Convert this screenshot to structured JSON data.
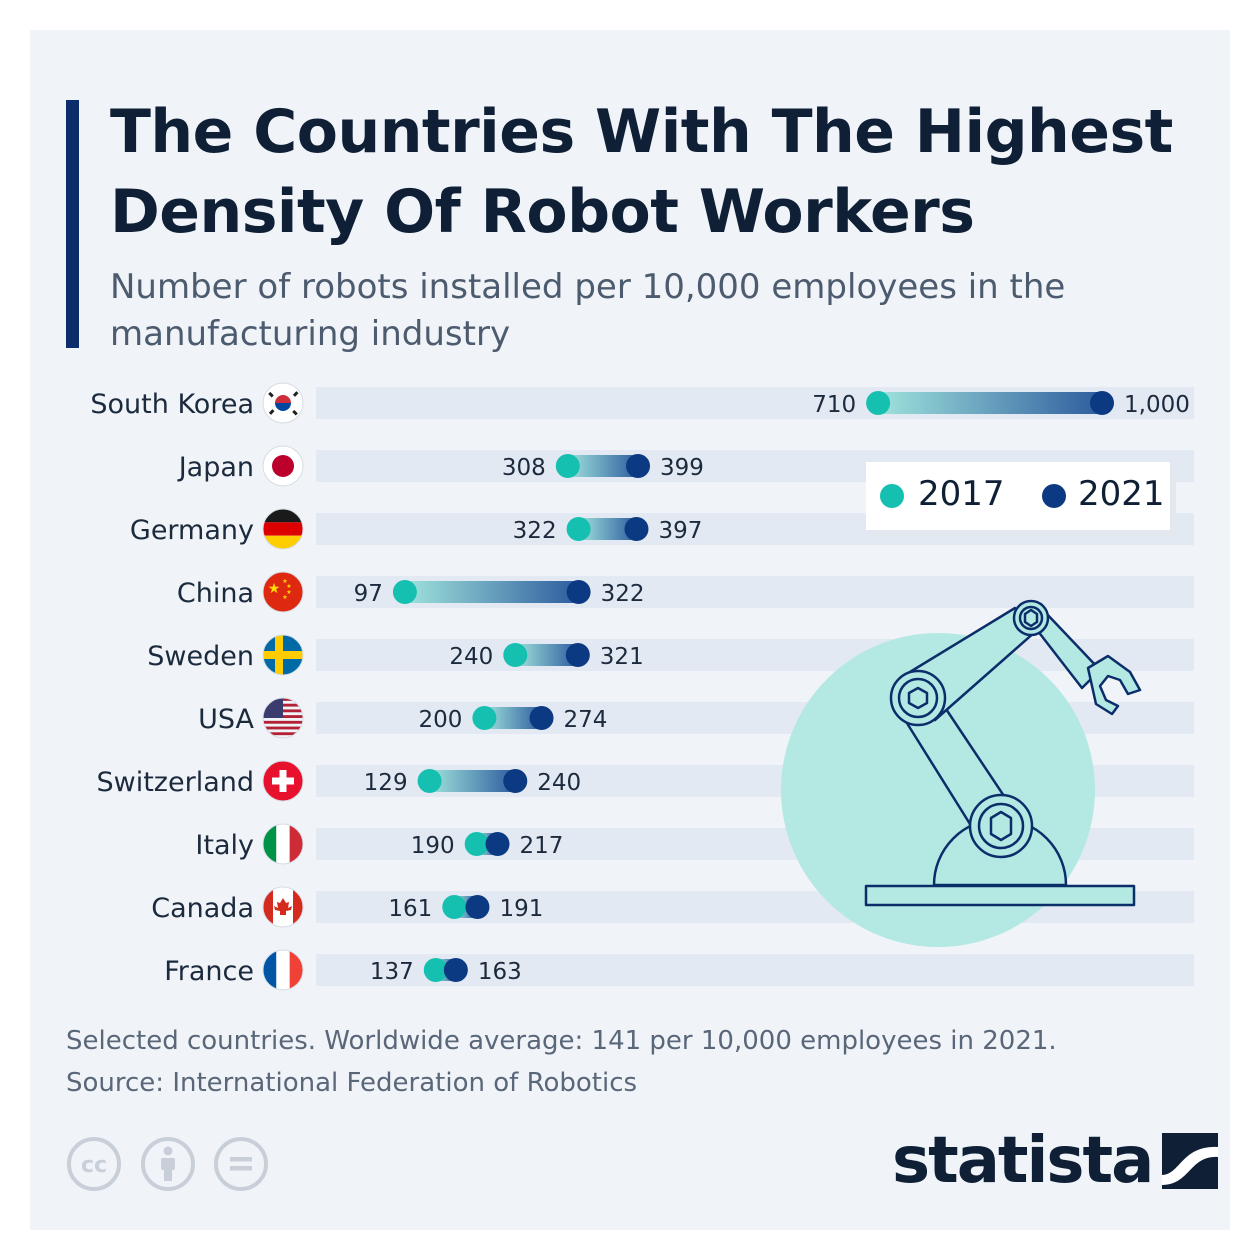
{
  "header": {
    "title": "The Countries With The Highest Density Of Robot Workers",
    "subtitle": "Number of robots installed per 10,000 employees in the manufacturing industry"
  },
  "legend": {
    "items": [
      {
        "label": "2017",
        "color": "#16c0b0"
      },
      {
        "label": "2021",
        "color": "#0b3a82"
      }
    ]
  },
  "chart_data": {
    "type": "dumbbell",
    "title": "The Countries With The Highest Density Of Robot Workers",
    "subtitle": "Number of robots installed per 10,000 employees in the manufacturing industry",
    "categories": [
      "South Korea",
      "Japan",
      "Germany",
      "China",
      "Sweden",
      "USA",
      "Switzerland",
      "Italy",
      "Canada",
      "France"
    ],
    "series": [
      {
        "name": "2017",
        "color": "#16c0b0",
        "values": [
          710,
          308,
          322,
          97,
          240,
          200,
          129,
          190,
          161,
          137
        ]
      },
      {
        "name": "2021",
        "color": "#0b3a82",
        "values": [
          1000,
          399,
          397,
          322,
          321,
          274,
          240,
          217,
          191,
          163
        ]
      }
    ],
    "value_labels": {
      "2017": [
        "710",
        "308",
        "322",
        "97",
        "240",
        "200",
        "129",
        "190",
        "161",
        "137"
      ],
      "2021": [
        "1,000",
        "399",
        "397",
        "322",
        "321",
        "274",
        "240",
        "217",
        "191",
        "163"
      ]
    },
    "xlim": [
      0,
      1000
    ],
    "grid": false,
    "legend_position": "top-right"
  },
  "flags": [
    "south-korea-flag-icon",
    "japan-flag-icon",
    "germany-flag-icon",
    "china-flag-icon",
    "sweden-flag-icon",
    "usa-flag-icon",
    "switzerland-flag-icon",
    "italy-flag-icon",
    "canada-flag-icon",
    "france-flag-icon"
  ],
  "illustration": {
    "name": "robot-arm-illustration",
    "circle_color": "#b4e8e3",
    "line_color": "#0b2e6b"
  },
  "footer": {
    "note": "Selected countries. Worldwide average: 141 per 10,000 employees in 2021.",
    "source": "Source: International Federation of Robotics",
    "brand": "statista",
    "license_icons": [
      "creative-commons-icon",
      "attribution-icon",
      "no-derivatives-icon"
    ]
  }
}
